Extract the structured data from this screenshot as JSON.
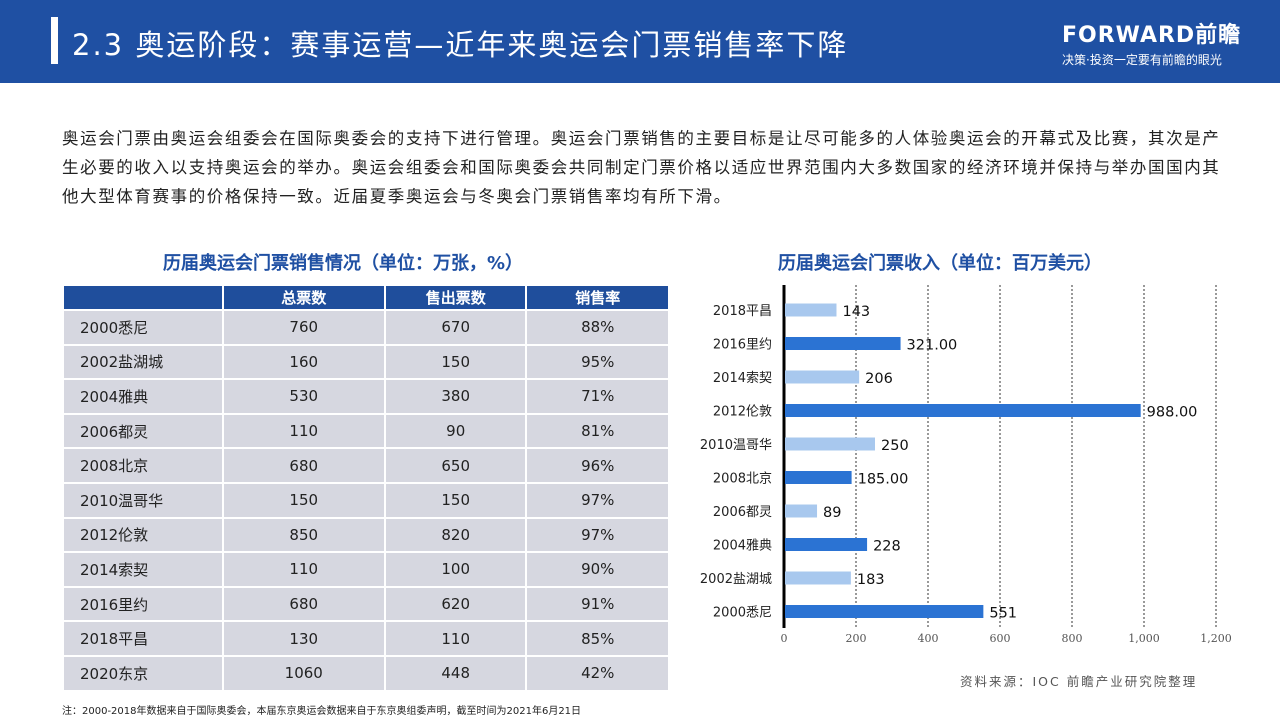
{
  "header": {
    "title": "2.3 奥运阶段：赛事运营—近年来奥运会门票销售率下降",
    "logo_main": "FORWARD前瞻",
    "logo_sub": "决策·投资一定要有前瞻的眼光"
  },
  "paragraph": "奥运会门票由奥运会组委会在国际奥委会的支持下进行管理。奥运会门票销售的主要目标是让尽可能多的人体验奥运会的开幕式及比赛，其次是产生必要的收入以支持奥运会的举办。奥运会组委会和国际奥委会共同制定门票价格以适应世界范围内大多数国家的经济环境并保持与举办国国内其他大型体育赛事的价格保持一致。近届夏季奥运会与冬奥会门票销售率均有所下滑。",
  "table": {
    "title": "历届奥运会门票销售情况（单位：万张，%）",
    "headers": [
      "",
      "总票数",
      "售出票数",
      "销售率"
    ],
    "rows": [
      [
        "2000悉尼",
        "760",
        "670",
        "88%"
      ],
      [
        "2002盐湖城",
        "160",
        "150",
        "95%"
      ],
      [
        "2004雅典",
        "530",
        "380",
        "71%"
      ],
      [
        "2006都灵",
        "110",
        "90",
        "81%"
      ],
      [
        "2008北京",
        "680",
        "650",
        "96%"
      ],
      [
        "2010温哥华",
        "150",
        "150",
        "97%"
      ],
      [
        "2012伦敦",
        "850",
        "820",
        "97%"
      ],
      [
        "2014索契",
        "110",
        "100",
        "90%"
      ],
      [
        "2016里约",
        "680",
        "620",
        "91%"
      ],
      [
        "2018平昌",
        "130",
        "110",
        "85%"
      ],
      [
        "2020东京",
        "1060",
        "448",
        "42%"
      ]
    ]
  },
  "chart_data": {
    "type": "bar",
    "orientation": "horizontal",
    "title": "历届奥运会门票收入（单位：百万美元）",
    "categories": [
      "2018平昌",
      "2016里约",
      "2014索契",
      "2012伦敦",
      "2010温哥华",
      "2008北京",
      "2006都灵",
      "2004雅典",
      "2002盐湖城",
      "2000悉尼"
    ],
    "values": [
      143,
      321,
      206,
      988,
      250,
      185,
      89,
      228,
      183,
      551
    ],
    "data_labels": [
      "143",
      "321.00",
      "206",
      "988.00",
      "250",
      "185.00",
      "89",
      "228",
      "183",
      "551"
    ],
    "xlim": [
      0,
      1200
    ],
    "xticks": [
      "0",
      "200",
      "400",
      "600",
      "800",
      "1,000",
      "1,200"
    ],
    "grid": "vertical dashed",
    "colors": {
      "summer": "#2b73d3",
      "winter": "#a8c8ee"
    }
  },
  "note": "注：2000-2018年数据来自于国际奥委会，本届东京奥运会数据来自于东京奥组委声明，截至时间为2021年6月21日",
  "source": "资料来源：IOC 前瞻产业研究院整理"
}
